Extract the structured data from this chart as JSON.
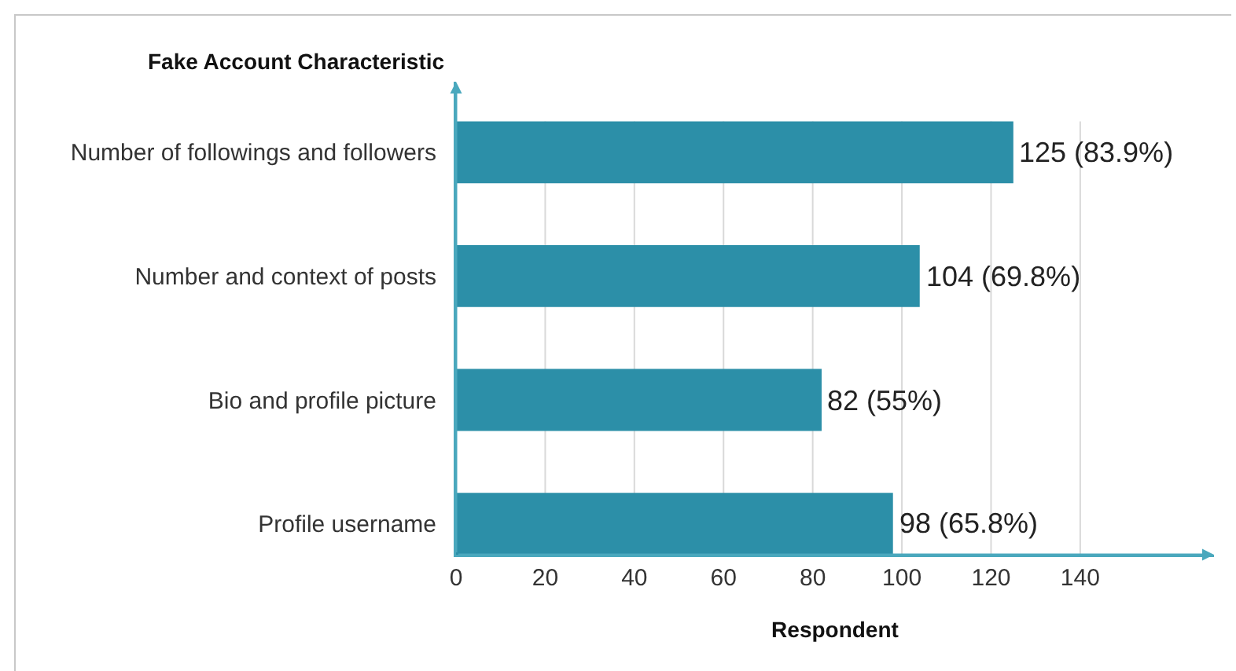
{
  "chart_data": {
    "type": "bar",
    "orientation": "horizontal",
    "ylabel": "Fake Account Characteristic",
    "xlabel": "Respondent",
    "categories": [
      "Number of followings and followers",
      "Number and context of posts",
      "Bio and profile picture",
      "Profile username"
    ],
    "values": [
      125,
      104,
      82,
      98
    ],
    "color": "#2c8fa8",
    "value_labels": [
      "125 (83.9%)",
      "104 (69.8%)",
      "82 (55%)",
      "98 (65.8%)"
    ],
    "xlim": [
      0,
      170
    ],
    "xticks": [
      0,
      20,
      40,
      60,
      80,
      100,
      120,
      140
    ],
    "grid": "x"
  }
}
